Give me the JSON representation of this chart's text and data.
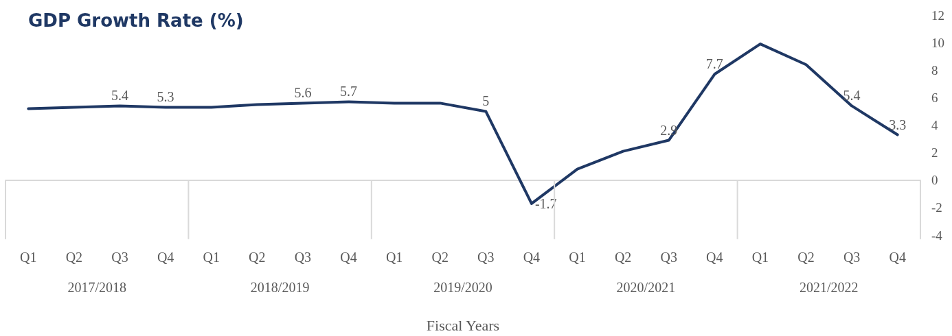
{
  "chart_data": {
    "type": "line",
    "title": "GDP Growth Rate (%)",
    "xlabel": "Fiscal Years",
    "categories": [
      "Q1",
      "Q2",
      "Q3",
      "Q4",
      "Q1",
      "Q2",
      "Q3",
      "Q4",
      "Q1",
      "Q2",
      "Q3",
      "Q4",
      "Q1",
      "Q2",
      "Q3",
      "Q4",
      "Q1",
      "Q2",
      "Q3",
      "Q4"
    ],
    "series": [
      {
        "color": "#1f3864",
        "values": [
          5.2,
          5.3,
          5.4,
          5.3,
          5.3,
          5.5,
          5.6,
          5.7,
          5.6,
          5.6,
          5,
          -1.7,
          0.8,
          2.1,
          2.9,
          7.7,
          9.9,
          8.4,
          5.4,
          3.3
        ],
        "value_labels": [
          null,
          null,
          "5.4",
          "5.3",
          null,
          null,
          "5.6",
          "5.7",
          null,
          null,
          "5",
          "-1.7",
          null,
          null,
          "2.9",
          "7.7",
          null,
          null,
          "5.4",
          "3.3"
        ]
      }
    ],
    "annotations": [
      "2017/2018",
      "2018/2019",
      "2019/2020",
      "2020/2021",
      "2021/2022"
    ],
    "ylim": [
      -4,
      12
    ],
    "yticks": [
      -4,
      -2,
      0,
      2,
      4,
      6,
      8,
      10,
      12
    ],
    "line_style": "solid"
  }
}
